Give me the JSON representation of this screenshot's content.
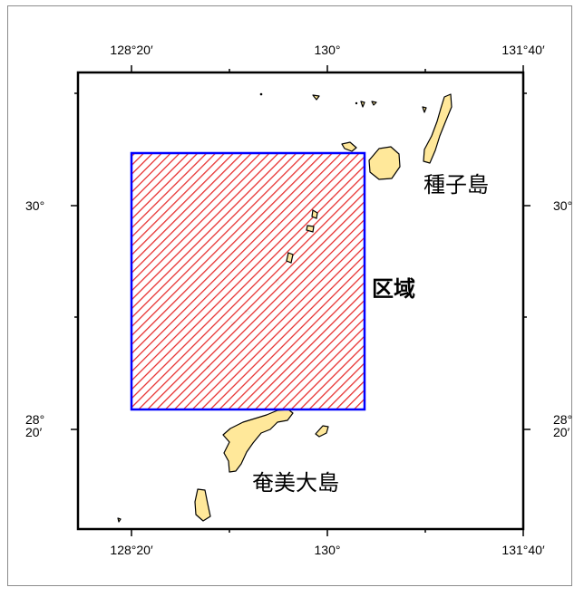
{
  "map": {
    "x_ticks": [
      "128°20′",
      "130°",
      "131°40′"
    ],
    "y_ticks": [
      "30°",
      "28°\n20′"
    ],
    "place_labels": {
      "tanegashima": "種子島",
      "amami_oshima": "奄美大島"
    },
    "region": {
      "label": "区域",
      "fill_pattern_color": "#e52020",
      "border_color": "#0000ff"
    },
    "land_color": "#ffe89a",
    "land_outline_color": "#000000"
  }
}
